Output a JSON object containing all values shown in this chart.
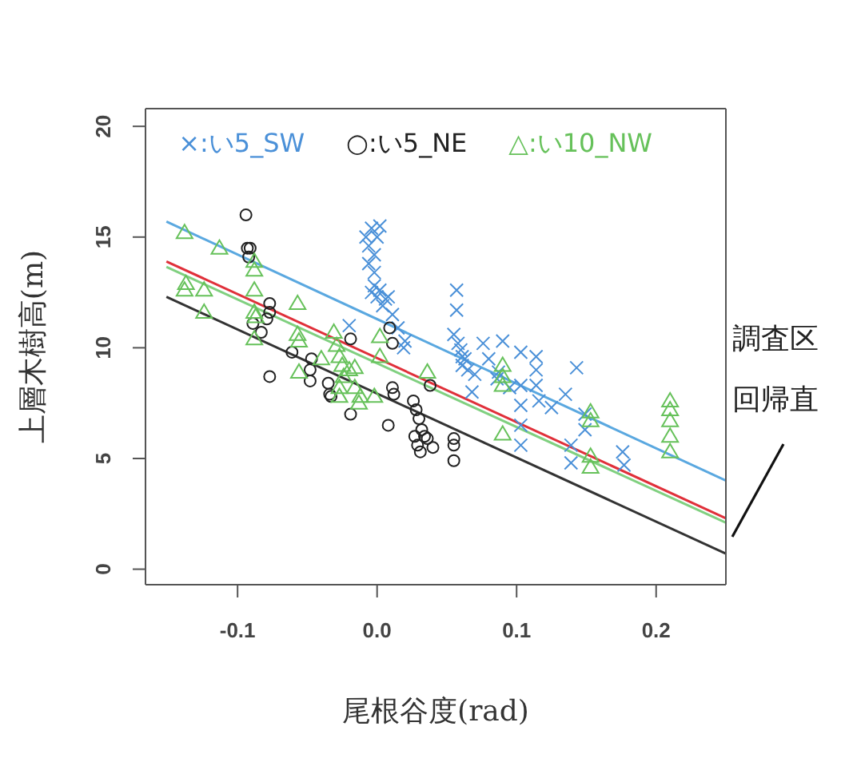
{
  "chart_data": {
    "type": "scatter",
    "xlabel": "尾根谷度(rad)",
    "ylabel": "上層木樹高(m)",
    "xlim": [
      -0.166,
      0.25
    ],
    "xticks": [
      {
        "value": -0.1,
        "label": "-0.1"
      },
      {
        "value": 0,
        "label": "0.0"
      },
      {
        "value": 0.1,
        "label": "0.1"
      },
      {
        "value": 0.2,
        "label": "0.2"
      }
    ],
    "ylim": [
      -0.7,
      20.8
    ],
    "yticks": [
      0,
      5,
      10,
      15,
      20
    ],
    "legend": "top",
    "annotations": [
      "調査区",
      "回帰直"
    ],
    "series": [
      {
        "name": "×:い5_SW",
        "marker": "cross",
        "color": "#4a90d8",
        "x": [
          -0.008,
          -0.006,
          -0.004,
          -0.002,
          0.0,
          -0.006,
          -0.002,
          0.002,
          -0.004,
          0.0,
          -0.002,
          0.002,
          0.004,
          0.006,
          0.008,
          0.011,
          0.015,
          0.019,
          0.057,
          0.057,
          0.055,
          0.058,
          0.06,
          0.061,
          0.061,
          0.063,
          0.065,
          0.07,
          0.076,
          0.08,
          0.087,
          0.09,
          0.086,
          0.103,
          0.103,
          0.103,
          0.103,
          0.103,
          0.114,
          0.114,
          0.114,
          0.116,
          0.135,
          0.143,
          0.139,
          0.139,
          0.149,
          0.149,
          0.176,
          0.177,
          0.068,
          0.095,
          0.125,
          -0.02,
          0.02
        ],
        "values": [
          15.0,
          14.6,
          15.4,
          14.2,
          15.0,
          13.8,
          13.4,
          15.5,
          12.5,
          12.3,
          12.8,
          12.6,
          11.9,
          12.2,
          12.3,
          11.5,
          10.9,
          10.0,
          12.6,
          11.7,
          10.6,
          10.2,
          9.9,
          9.6,
          9.2,
          9.5,
          9.0,
          8.8,
          10.2,
          9.5,
          8.9,
          10.3,
          8.6,
          9.8,
          8.3,
          7.4,
          6.5,
          5.6,
          9.6,
          9.0,
          8.3,
          7.6,
          7.9,
          9.1,
          5.6,
          4.8,
          7.0,
          6.3,
          5.3,
          4.7,
          8.0,
          8.2,
          7.3,
          11.0,
          10.3
        ]
      },
      {
        "name": "○:い5_NE",
        "marker": "circle",
        "color": "#222222",
        "x": [
          -0.094,
          -0.093,
          -0.091,
          -0.092,
          -0.077,
          -0.077,
          -0.079,
          -0.089,
          -0.083,
          -0.077,
          -0.061,
          -0.047,
          -0.048,
          -0.048,
          -0.035,
          -0.034,
          -0.033,
          -0.019,
          -0.019,
          0.008,
          0.011,
          0.012,
          0.009,
          0.011,
          0.026,
          0.028,
          0.03,
          0.032,
          0.034,
          0.027,
          0.029,
          0.031,
          0.036,
          0.04,
          0.038,
          0.055,
          0.055,
          0.055
        ],
        "values": [
          16.0,
          14.5,
          14.5,
          14.1,
          12.0,
          11.6,
          11.3,
          11.1,
          10.7,
          8.7,
          9.8,
          9.5,
          9.0,
          8.5,
          8.4,
          7.9,
          7.8,
          10.4,
          7.0,
          6.5,
          8.2,
          7.9,
          10.9,
          10.2,
          7.6,
          7.2,
          6.8,
          6.3,
          6.0,
          6.0,
          5.6,
          5.3,
          5.9,
          5.5,
          8.3,
          5.9,
          5.6,
          4.9
        ]
      },
      {
        "name": "△:い10_NW",
        "marker": "triangle",
        "color": "#66c15a",
        "x": [
          -0.138,
          -0.138,
          -0.137,
          -0.124,
          -0.124,
          -0.113,
          -0.088,
          -0.088,
          -0.088,
          -0.088,
          -0.087,
          -0.088,
          -0.057,
          -0.057,
          -0.056,
          -0.056,
          -0.031,
          -0.029,
          -0.027,
          -0.025,
          -0.024,
          -0.016,
          -0.016,
          -0.027,
          -0.027,
          -0.012,
          -0.013,
          -0.002,
          0.002,
          0.002,
          0.036,
          0.09,
          0.09,
          0.09,
          0.09,
          0.153,
          0.153,
          0.153,
          0.153,
          0.21,
          0.21,
          0.21,
          0.21,
          0.21,
          -0.04,
          -0.02
        ],
        "values": [
          15.2,
          12.6,
          12.9,
          12.6,
          11.6,
          14.5,
          13.9,
          13.5,
          12.6,
          11.6,
          11.4,
          10.4,
          12.0,
          10.6,
          10.3,
          8.9,
          10.7,
          10.1,
          9.6,
          9.2,
          8.7,
          9.1,
          8.2,
          7.8,
          8.2,
          7.8,
          7.5,
          7.8,
          10.5,
          9.6,
          8.9,
          9.2,
          8.7,
          8.3,
          6.1,
          7.1,
          6.7,
          5.1,
          4.6,
          7.6,
          7.2,
          6.7,
          6.0,
          5.3,
          9.5,
          9.0
        ]
      },
      {
        "type": "line",
        "color": "#5aa8e0",
        "x": [
          -0.151,
          0.25
        ],
        "values": [
          15.7,
          4.0
        ]
      },
      {
        "type": "line",
        "color": "#e0303a",
        "x": [
          -0.151,
          0.25
        ],
        "values": [
          13.9,
          2.3
        ]
      },
      {
        "type": "line",
        "color": "#80d080",
        "x": [
          -0.151,
          0.25
        ],
        "values": [
          13.65,
          2.1
        ]
      },
      {
        "type": "line",
        "color": "#333333",
        "x": [
          -0.151,
          0.25
        ],
        "values": [
          12.3,
          0.7
        ]
      }
    ]
  }
}
